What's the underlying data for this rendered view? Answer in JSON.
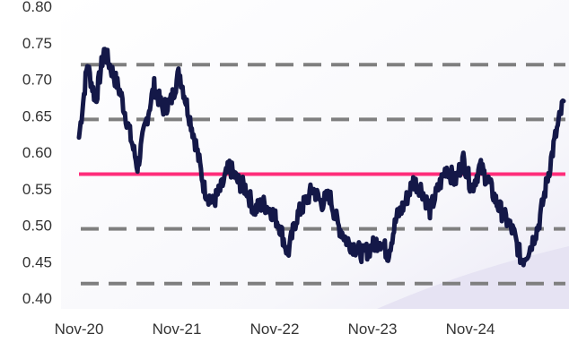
{
  "chart_data": {
    "type": "line",
    "title": "",
    "xlabel": "",
    "ylabel": "",
    "x_tick_labels": [
      "Nov-20",
      "Nov-21",
      "Nov-22",
      "Nov-23",
      "Nov-24"
    ],
    "y_tick_labels": [
      "0.80",
      "0.75",
      "0.70",
      "0.65",
      "0.60",
      "0.55",
      "0.50",
      "0.45",
      "0.40"
    ],
    "ylim": [
      0.4,
      0.8
    ],
    "xlim": [
      "2020-11",
      "2025-09"
    ],
    "legend": "none",
    "grid": false,
    "reference_lines": [
      {
        "style": "solid",
        "color": "#ff2d7a",
        "value": 0.57
      },
      {
        "style": "dashed",
        "color": "#7f7f7f",
        "value": 0.72
      },
      {
        "style": "dashed",
        "color": "#7f7f7f",
        "value": 0.645
      },
      {
        "style": "dashed",
        "color": "#7f7f7f",
        "value": 0.495
      },
      {
        "style": "dashed",
        "color": "#7f7f7f",
        "value": 0.42
      }
    ],
    "series": [
      {
        "color": "#141848",
        "x": [
          "2020-11",
          "2020-12",
          "2021-01",
          "2021-02",
          "2021-03",
          "2021-04",
          "2021-05",
          "2021-06",
          "2021-07",
          "2021-08",
          "2021-09",
          "2021-10",
          "2021-11",
          "2021-12",
          "2022-01",
          "2022-02",
          "2022-03",
          "2022-04",
          "2022-05",
          "2022-06",
          "2022-07",
          "2022-08",
          "2022-09",
          "2022-10",
          "2022-11",
          "2022-12",
          "2023-01",
          "2023-02",
          "2023-03",
          "2023-04",
          "2023-05",
          "2023-06",
          "2023-07",
          "2023-08",
          "2023-09",
          "2023-10",
          "2023-11",
          "2023-12",
          "2024-01",
          "2024-02",
          "2024-03",
          "2024-04",
          "2024-05",
          "2024-06",
          "2024-07",
          "2024-08",
          "2024-09",
          "2024-10",
          "2024-11",
          "2024-12",
          "2025-01",
          "2025-02",
          "2025-03",
          "2025-04",
          "2025-05",
          "2025-06",
          "2025-07",
          "2025-08",
          "2025-09"
        ],
        "values": [
          0.62,
          0.72,
          0.67,
          0.74,
          0.71,
          0.68,
          0.63,
          0.58,
          0.64,
          0.69,
          0.66,
          0.67,
          0.71,
          0.66,
          0.61,
          0.55,
          0.53,
          0.55,
          0.58,
          0.56,
          0.55,
          0.52,
          0.53,
          0.52,
          0.5,
          0.46,
          0.51,
          0.53,
          0.55,
          0.53,
          0.54,
          0.5,
          0.48,
          0.47,
          0.46,
          0.47,
          0.48,
          0.46,
          0.51,
          0.53,
          0.56,
          0.55,
          0.52,
          0.55,
          0.58,
          0.56,
          0.59,
          0.55,
          0.58,
          0.56,
          0.53,
          0.51,
          0.49,
          0.45,
          0.47,
          0.5,
          0.56,
          0.62,
          0.67
        ]
      }
    ]
  }
}
